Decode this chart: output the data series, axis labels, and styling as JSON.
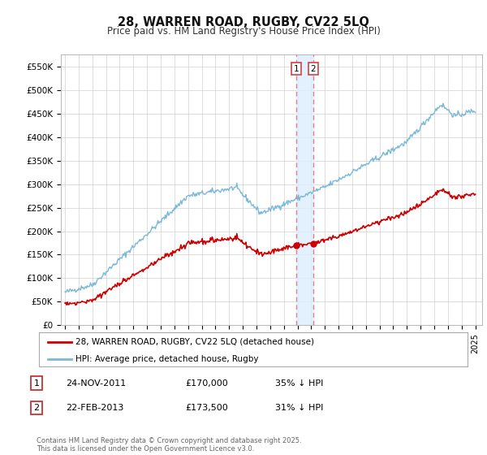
{
  "title": "28, WARREN ROAD, RUGBY, CV22 5LQ",
  "subtitle": "Price paid vs. HM Land Registry's House Price Index (HPI)",
  "ylabel_ticks": [
    "£0",
    "£50K",
    "£100K",
    "£150K",
    "£200K",
    "£250K",
    "£300K",
    "£350K",
    "£400K",
    "£450K",
    "£500K",
    "£550K"
  ],
  "ytick_values": [
    0,
    50000,
    100000,
    150000,
    200000,
    250000,
    300000,
    350000,
    400000,
    450000,
    500000,
    550000
  ],
  "ylim": [
    0,
    575000
  ],
  "xlim_start": 1994.7,
  "xlim_end": 2025.5,
  "hpi_color": "#7ab8d9",
  "price_color": "#cc0000",
  "vline_color": "#e08080",
  "sale1_x": 2011.9,
  "sale1_y": 170000,
  "sale2_x": 2013.15,
  "sale2_y": 173500,
  "legend_line1": "28, WARREN ROAD, RUGBY, CV22 5LQ (detached house)",
  "legend_line2": "HPI: Average price, detached house, Rugby",
  "table_row1": [
    "1",
    "24-NOV-2011",
    "£170,000",
    "35% ↓ HPI"
  ],
  "table_row2": [
    "2",
    "22-FEB-2013",
    "£173,500",
    "31% ↓ HPI"
  ],
  "footer": "Contains HM Land Registry data © Crown copyright and database right 2025.\nThis data is licensed under the Open Government Licence v3.0.",
  "background_color": "#ffffff",
  "grid_color": "#d0d0d0"
}
